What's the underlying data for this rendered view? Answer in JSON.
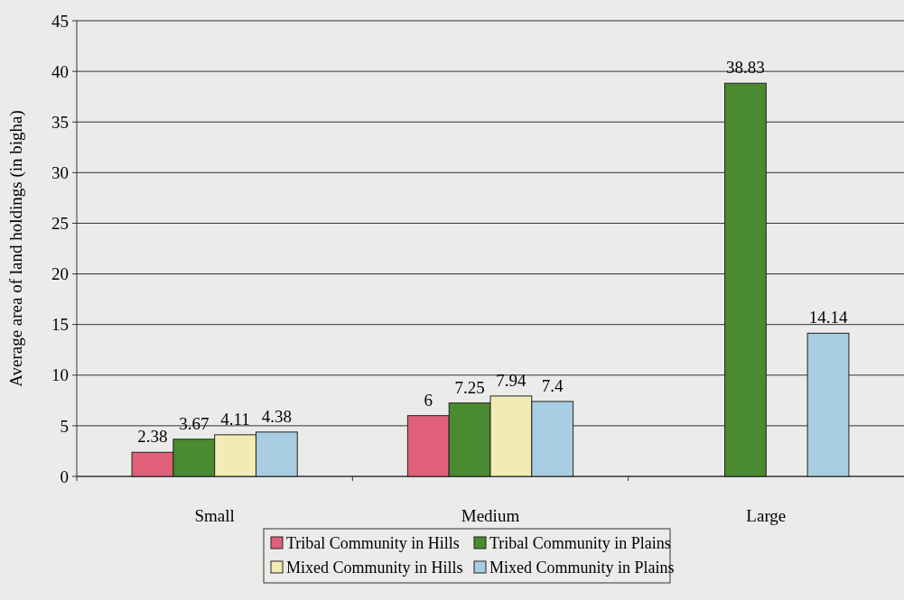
{
  "chart_data": {
    "type": "bar",
    "ylabel": "Average area of land holdings (in bigha)",
    "categories": [
      "Small",
      "Medium",
      "Large"
    ],
    "series": [
      {
        "name": "Tribal Community in Hills",
        "color": "#e0607a",
        "values": [
          2.38,
          6,
          null
        ]
      },
      {
        "name": "Tribal Community in Plains",
        "color": "#4a8a30",
        "values": [
          3.67,
          7.25,
          38.83
        ]
      },
      {
        "name": "Mixed Community in Hills",
        "color": "#f2ecb4",
        "values": [
          4.11,
          7.94,
          null
        ]
      },
      {
        "name": "Mixed Community in Plains",
        "color": "#a9cde2",
        "values": [
          4.38,
          7.4,
          14.14
        ]
      }
    ],
    "ylim": [
      0,
      45
    ],
    "yticks": [
      0,
      5,
      10,
      15,
      20,
      25,
      30,
      35,
      40,
      45
    ],
    "grid": "y",
    "legend": "bottom",
    "data_labels": true
  }
}
